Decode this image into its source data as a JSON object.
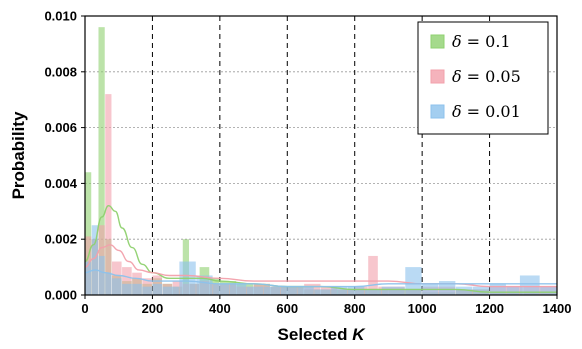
{
  "chart_data": {
    "type": "bar",
    "xlabel_prefix": "Selected ",
    "xlabel_var": "K",
    "ylabel": "Probability",
    "xlim": [
      0,
      1400
    ],
    "ylim": [
      0,
      0.01
    ],
    "x_ticks": [
      0,
      200,
      400,
      600,
      800,
      1000,
      1200,
      1400
    ],
    "x_tick_labels": [
      "0",
      "200",
      "400",
      "600",
      "800",
      "1000",
      "1200",
      "1400"
    ],
    "y_ticks": [
      0,
      0.002,
      0.004,
      0.006,
      0.008,
      0.01
    ],
    "y_tick_labels": [
      "0.000",
      "0.002",
      "0.004",
      "0.006",
      "0.008",
      "0.010"
    ],
    "vertical_grid": "dashed",
    "horizontal_grid": "dotted",
    "legend_position": "top-right",
    "series": [
      {
        "name": "δ = 0.1",
        "legend_symbol": "δ",
        "legend_value": "= 0.1",
        "color": "#8fd16f",
        "bins": [
          {
            "x0": 0,
            "x1": 20,
            "y": 0.0044
          },
          {
            "x0": 20,
            "x1": 40,
            "y": 0.002
          },
          {
            "x0": 40,
            "x1": 60,
            "y": 0.0096
          },
          {
            "x0": 60,
            "x1": 80,
            "y": 0.002
          },
          {
            "x0": 80,
            "x1": 110,
            "y": 0.0007
          },
          {
            "x0": 110,
            "x1": 140,
            "y": 0.0005
          },
          {
            "x0": 140,
            "x1": 170,
            "y": 0.0006
          },
          {
            "x0": 170,
            "x1": 200,
            "y": 0.0004
          },
          {
            "x0": 200,
            "x1": 230,
            "y": 0.0006
          },
          {
            "x0": 230,
            "x1": 260,
            "y": 0.0004
          },
          {
            "x0": 260,
            "x1": 290,
            "y": 0.0003
          },
          {
            "x0": 290,
            "x1": 310,
            "y": 0.002
          },
          {
            "x0": 310,
            "x1": 340,
            "y": 0.0004
          },
          {
            "x0": 340,
            "x1": 370,
            "y": 0.001
          },
          {
            "x0": 370,
            "x1": 400,
            "y": 0.0006
          },
          {
            "x0": 400,
            "x1": 450,
            "y": 0.0005
          },
          {
            "x0": 450,
            "x1": 500,
            "y": 0.0004
          },
          {
            "x0": 500,
            "x1": 550,
            "y": 0.0004
          },
          {
            "x0": 550,
            "x1": 600,
            "y": 0.0003
          },
          {
            "x0": 600,
            "x1": 650,
            "y": 0.0003
          },
          {
            "x0": 650,
            "x1": 700,
            "y": 0.0002
          },
          {
            "x0": 700,
            "x1": 800,
            "y": 0.0002
          },
          {
            "x0": 800,
            "x1": 900,
            "y": 0.0002
          },
          {
            "x0": 900,
            "x1": 1000,
            "y": 0.0002
          },
          {
            "x0": 1000,
            "x1": 1100,
            "y": 0.0001
          },
          {
            "x0": 1100,
            "x1": 1200,
            "y": 0.0002
          },
          {
            "x0": 1200,
            "x1": 1300,
            "y": 0.0001
          },
          {
            "x0": 1300,
            "x1": 1400,
            "y": 0.0001
          }
        ],
        "kde": [
          [
            0,
            0.0012
          ],
          [
            25,
            0.0018
          ],
          [
            50,
            0.0028
          ],
          [
            70,
            0.0032
          ],
          [
            90,
            0.003
          ],
          [
            110,
            0.0024
          ],
          [
            140,
            0.0017
          ],
          [
            170,
            0.0011
          ],
          [
            200,
            0.0008
          ],
          [
            250,
            0.0006
          ],
          [
            300,
            0.0006
          ],
          [
            350,
            0.0006
          ],
          [
            400,
            0.0005
          ],
          [
            500,
            0.0004
          ],
          [
            600,
            0.0003
          ],
          [
            700,
            0.0003
          ],
          [
            800,
            0.0002
          ],
          [
            900,
            0.0002
          ],
          [
            1000,
            0.0002
          ],
          [
            1100,
            0.0002
          ],
          [
            1200,
            0.0001
          ],
          [
            1300,
            0.0001
          ],
          [
            1400,
            0.0001
          ]
        ]
      },
      {
        "name": "δ = 0.05",
        "legend_symbol": "δ",
        "legend_value": "= 0.05",
        "color": "#f2a0ab",
        "bins": [
          {
            "x0": 0,
            "x1": 20,
            "y": 0.0021
          },
          {
            "x0": 20,
            "x1": 40,
            "y": 0.002
          },
          {
            "x0": 40,
            "x1": 60,
            "y": 0.0025
          },
          {
            "x0": 60,
            "x1": 80,
            "y": 0.0072
          },
          {
            "x0": 80,
            "x1": 110,
            "y": 0.0012
          },
          {
            "x0": 110,
            "x1": 140,
            "y": 0.001
          },
          {
            "x0": 140,
            "x1": 170,
            "y": 0.0008
          },
          {
            "x0": 170,
            "x1": 200,
            "y": 0.0006
          },
          {
            "x0": 200,
            "x1": 230,
            "y": 0.0007
          },
          {
            "x0": 230,
            "x1": 260,
            "y": 0.0004
          },
          {
            "x0": 260,
            "x1": 290,
            "y": 0.0005
          },
          {
            "x0": 290,
            "x1": 310,
            "y": 0.0004
          },
          {
            "x0": 310,
            "x1": 340,
            "y": 0.0004
          },
          {
            "x0": 340,
            "x1": 370,
            "y": 0.0005
          },
          {
            "x0": 370,
            "x1": 400,
            "y": 0.0004
          },
          {
            "x0": 400,
            "x1": 450,
            "y": 0.0004
          },
          {
            "x0": 450,
            "x1": 500,
            "y": 0.0003
          },
          {
            "x0": 500,
            "x1": 550,
            "y": 0.0004
          },
          {
            "x0": 550,
            "x1": 600,
            "y": 0.0003
          },
          {
            "x0": 600,
            "x1": 650,
            "y": 0.0003
          },
          {
            "x0": 650,
            "x1": 700,
            "y": 0.0004
          },
          {
            "x0": 700,
            "x1": 750,
            "y": 0.0003
          },
          {
            "x0": 750,
            "x1": 800,
            "y": 0.0002
          },
          {
            "x0": 800,
            "x1": 840,
            "y": 0.0003
          },
          {
            "x0": 840,
            "x1": 870,
            "y": 0.0014
          },
          {
            "x0": 870,
            "x1": 950,
            "y": 0.0003
          },
          {
            "x0": 950,
            "x1": 1000,
            "y": 0.0002
          },
          {
            "x0": 1000,
            "x1": 1100,
            "y": 0.0003
          },
          {
            "x0": 1100,
            "x1": 1200,
            "y": 0.0002
          },
          {
            "x0": 1200,
            "x1": 1300,
            "y": 0.0003
          },
          {
            "x0": 1300,
            "x1": 1400,
            "y": 0.0003
          }
        ],
        "kde": [
          [
            0,
            0.001
          ],
          [
            25,
            0.0013
          ],
          [
            50,
            0.0017
          ],
          [
            75,
            0.0018
          ],
          [
            100,
            0.0016
          ],
          [
            130,
            0.0012
          ],
          [
            160,
            0.0009
          ],
          [
            200,
            0.0008
          ],
          [
            250,
            0.0007
          ],
          [
            300,
            0.0007
          ],
          [
            400,
            0.0006
          ],
          [
            500,
            0.0005
          ],
          [
            600,
            0.0005
          ],
          [
            700,
            0.0005
          ],
          [
            800,
            0.0005
          ],
          [
            900,
            0.0005
          ],
          [
            1000,
            0.0004
          ],
          [
            1100,
            0.0004
          ],
          [
            1200,
            0.0003
          ],
          [
            1300,
            0.0003
          ],
          [
            1400,
            0.0003
          ]
        ]
      },
      {
        "name": "δ = 0.01",
        "legend_symbol": "δ",
        "legend_value": "= 0.01",
        "color": "#8cc2ec",
        "bins": [
          {
            "x0": 0,
            "x1": 20,
            "y": 0.0012
          },
          {
            "x0": 20,
            "x1": 40,
            "y": 0.0025
          },
          {
            "x0": 40,
            "x1": 60,
            "y": 0.0014
          },
          {
            "x0": 60,
            "x1": 80,
            "y": 0.0008
          },
          {
            "x0": 80,
            "x1": 110,
            "y": 0.0006
          },
          {
            "x0": 110,
            "x1": 140,
            "y": 0.0004
          },
          {
            "x0": 140,
            "x1": 170,
            "y": 0.0004
          },
          {
            "x0": 170,
            "x1": 200,
            "y": 0.0003
          },
          {
            "x0": 200,
            "x1": 230,
            "y": 0.0004
          },
          {
            "x0": 230,
            "x1": 280,
            "y": 0.0003
          },
          {
            "x0": 280,
            "x1": 330,
            "y": 0.0012
          },
          {
            "x0": 330,
            "x1": 380,
            "y": 0.0007
          },
          {
            "x0": 380,
            "x1": 430,
            "y": 0.0004
          },
          {
            "x0": 430,
            "x1": 480,
            "y": 0.0004
          },
          {
            "x0": 480,
            "x1": 530,
            "y": 0.0003
          },
          {
            "x0": 530,
            "x1": 580,
            "y": 0.0003
          },
          {
            "x0": 580,
            "x1": 630,
            "y": 0.0003
          },
          {
            "x0": 630,
            "x1": 680,
            "y": 0.0003
          },
          {
            "x0": 680,
            "x1": 730,
            "y": 0.0002
          },
          {
            "x0": 730,
            "x1": 780,
            "y": 0.0003
          },
          {
            "x0": 780,
            "x1": 830,
            "y": 0.0003
          },
          {
            "x0": 830,
            "x1": 880,
            "y": 0.0002
          },
          {
            "x0": 880,
            "x1": 950,
            "y": 0.0003
          },
          {
            "x0": 950,
            "x1": 1000,
            "y": 0.001
          },
          {
            "x0": 1000,
            "x1": 1050,
            "y": 0.0004
          },
          {
            "x0": 1050,
            "x1": 1100,
            "y": 0.0005
          },
          {
            "x0": 1100,
            "x1": 1150,
            "y": 0.0003
          },
          {
            "x0": 1150,
            "x1": 1200,
            "y": 0.0003
          },
          {
            "x0": 1200,
            "x1": 1250,
            "y": 0.0004
          },
          {
            "x0": 1250,
            "x1": 1290,
            "y": 0.0003
          },
          {
            "x0": 1290,
            "x1": 1350,
            "y": 0.0007
          },
          {
            "x0": 1350,
            "x1": 1400,
            "y": 0.0003
          }
        ],
        "kde": [
          [
            0,
            0.0008
          ],
          [
            30,
            0.0009
          ],
          [
            60,
            0.0008
          ],
          [
            100,
            0.0007
          ],
          [
            150,
            0.0006
          ],
          [
            200,
            0.0005
          ],
          [
            300,
            0.0005
          ],
          [
            400,
            0.0004
          ],
          [
            500,
            0.0004
          ],
          [
            600,
            0.0003
          ],
          [
            700,
            0.0003
          ],
          [
            800,
            0.0003
          ],
          [
            900,
            0.0004
          ],
          [
            1000,
            0.0004
          ],
          [
            1100,
            0.0004
          ],
          [
            1200,
            0.0004
          ],
          [
            1300,
            0.0004
          ],
          [
            1400,
            0.0004
          ]
        ]
      }
    ]
  }
}
